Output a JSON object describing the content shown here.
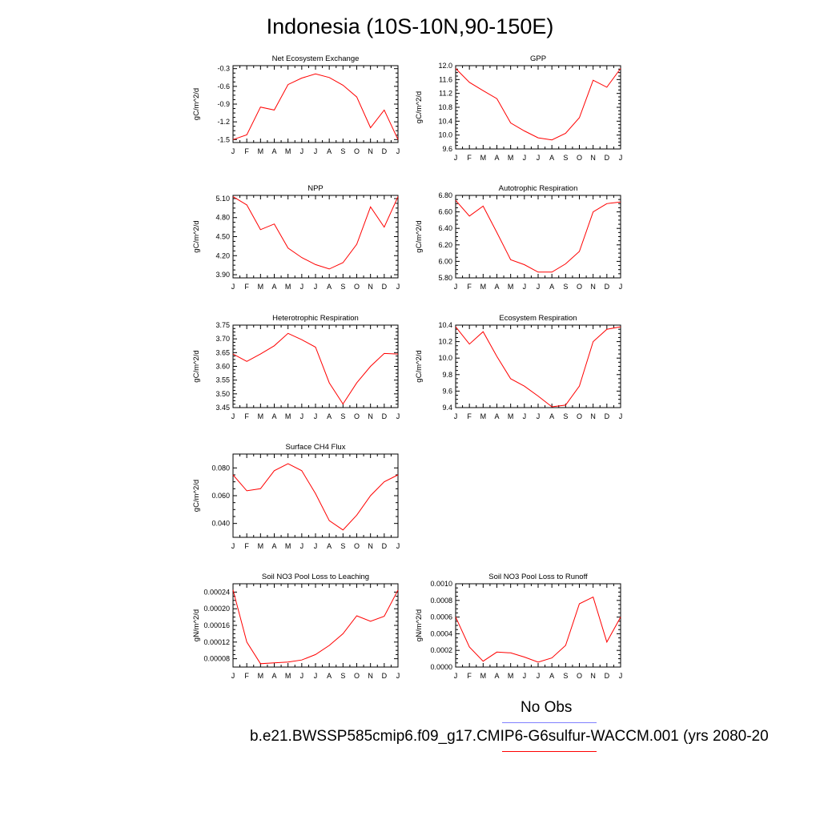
{
  "title": "Indonesia (10S-10N,90-150E)",
  "colors": {
    "model": "#ff0000",
    "obs": "#8080ff",
    "axis": "#000000"
  },
  "legend": {
    "obs_label": "No Obs",
    "model_label": "b.e21.BWSSP585cmip6.f09_g17.CMIP6-G6sulfur-WACCM.001 (yrs 2080-20"
  },
  "chart_data": [
    {
      "type": "line",
      "title": "Net Ecosystem Exchange",
      "ylabel": "gC/m^2/d",
      "x": [
        "J",
        "F",
        "M",
        "A",
        "M",
        "J",
        "J",
        "A",
        "S",
        "O",
        "N",
        "D",
        "J"
      ],
      "ylim": [
        -1.55,
        -0.25
      ],
      "yticks": [
        -1.5,
        -1.2,
        -0.9,
        -0.6,
        -0.3
      ],
      "yticklabels": [
        "-1.5",
        "-1.2",
        "-0.9",
        "-0.6",
        "-0.3"
      ],
      "values": [
        -1.5,
        -1.42,
        -0.95,
        -1.0,
        -0.57,
        -0.46,
        -0.39,
        -0.45,
        -0.58,
        -0.78,
        -1.3,
        -1.0,
        -1.5
      ]
    },
    {
      "type": "line",
      "title": "GPP",
      "ylabel": "gC/m^2/d",
      "x": [
        "J",
        "F",
        "M",
        "A",
        "M",
        "J",
        "J",
        "A",
        "S",
        "O",
        "N",
        "D",
        "J"
      ],
      "ylim": [
        9.6,
        12.0
      ],
      "yticks": [
        9.6,
        10.0,
        10.4,
        10.8,
        11.2,
        11.6,
        12.0
      ],
      "yticklabels": [
        "9.6",
        "10.0",
        "10.4",
        "10.8",
        "11.2",
        "11.6",
        "12.0"
      ],
      "values": [
        11.92,
        11.52,
        11.28,
        11.05,
        10.35,
        10.12,
        9.92,
        9.86,
        10.05,
        10.5,
        11.58,
        11.38,
        11.92
      ]
    },
    {
      "type": "line",
      "title": "NPP",
      "ylabel": "gC/m^2/d",
      "x": [
        "J",
        "F",
        "M",
        "A",
        "M",
        "J",
        "J",
        "A",
        "S",
        "O",
        "N",
        "D",
        "J"
      ],
      "ylim": [
        3.85,
        5.15
      ],
      "yticks": [
        3.9,
        4.2,
        4.5,
        4.8,
        5.1
      ],
      "yticklabels": [
        "3.90",
        "4.20",
        "4.50",
        "4.80",
        "5.10"
      ],
      "values": [
        5.13,
        5.0,
        4.61,
        4.7,
        4.32,
        4.17,
        4.06,
        3.99,
        4.09,
        4.38,
        4.97,
        4.65,
        5.13
      ]
    },
    {
      "type": "line",
      "title": "Autotrophic Respiration",
      "ylabel": "gC/m^2/d",
      "x": [
        "J",
        "F",
        "M",
        "A",
        "M",
        "J",
        "J",
        "A",
        "S",
        "O",
        "N",
        "D",
        "J"
      ],
      "ylim": [
        5.8,
        6.8
      ],
      "yticks": [
        5.8,
        6.0,
        6.2,
        6.4,
        6.6,
        6.8
      ],
      "yticklabels": [
        "5.80",
        "6.00",
        "6.20",
        "6.40",
        "6.60",
        "6.80"
      ],
      "values": [
        6.74,
        6.55,
        6.67,
        6.35,
        6.02,
        5.96,
        5.87,
        5.87,
        5.97,
        6.12,
        6.6,
        6.7,
        6.72
      ]
    },
    {
      "type": "line",
      "title": "Heterotrophic Respiration",
      "ylabel": "gC/m^2/d",
      "x": [
        "J",
        "F",
        "M",
        "A",
        "M",
        "J",
        "J",
        "A",
        "S",
        "O",
        "N",
        "D",
        "J"
      ],
      "ylim": [
        3.45,
        3.75
      ],
      "yticks": [
        3.45,
        3.5,
        3.55,
        3.6,
        3.65,
        3.7,
        3.75
      ],
      "yticklabels": [
        "3.45",
        "3.50",
        "3.55",
        "3.60",
        "3.65",
        "3.70",
        "3.75"
      ],
      "values": [
        3.645,
        3.618,
        3.645,
        3.675,
        3.72,
        3.697,
        3.67,
        3.54,
        3.463,
        3.54,
        3.6,
        3.647,
        3.645
      ]
    },
    {
      "type": "line",
      "title": "Ecosystem Respiration",
      "ylabel": "gC/m^2/d",
      "x": [
        "J",
        "F",
        "M",
        "A",
        "M",
        "J",
        "J",
        "A",
        "S",
        "O",
        "N",
        "D",
        "J"
      ],
      "ylim": [
        9.4,
        10.4
      ],
      "yticks": [
        9.4,
        9.6,
        9.8,
        10.0,
        10.2,
        10.4
      ],
      "yticklabels": [
        "9.4",
        "9.6",
        "9.8",
        "10.0",
        "10.2",
        "10.4"
      ],
      "values": [
        10.38,
        10.17,
        10.32,
        10.02,
        9.75,
        9.66,
        9.54,
        9.41,
        9.43,
        9.66,
        10.2,
        10.35,
        10.38
      ]
    },
    {
      "type": "line",
      "title": "Surface CH4 Flux",
      "ylabel": "gC/m^2/d",
      "x": [
        "J",
        "F",
        "M",
        "A",
        "M",
        "J",
        "J",
        "A",
        "S",
        "O",
        "N",
        "D",
        "J"
      ],
      "ylim": [
        0.03,
        0.09
      ],
      "yticks": [
        0.04,
        0.06,
        0.08
      ],
      "yticklabels": [
        "0.040",
        "0.060",
        "0.080"
      ],
      "values": [
        0.075,
        0.0635,
        0.065,
        0.078,
        0.083,
        0.078,
        0.0615,
        0.042,
        0.0353,
        0.046,
        0.06,
        0.07,
        0.075
      ]
    },
    {
      "type": "line",
      "title": "Soil NO3 Pool Loss to Leaching",
      "ylabel": "gN/m^2/d",
      "x": [
        "J",
        "F",
        "M",
        "A",
        "M",
        "J",
        "J",
        "A",
        "S",
        "O",
        "N",
        "D",
        "J"
      ],
      "ylim": [
        6e-05,
        0.00026
      ],
      "yticks": [
        8e-05,
        0.00012,
        0.00016,
        0.0002,
        0.00024
      ],
      "yticklabels": [
        "0.00008",
        "0.00012",
        "0.00016",
        "0.00020",
        "0.00024"
      ],
      "values": [
        0.000245,
        0.00012,
        6.8e-05,
        7e-05,
        7.2e-05,
        7.7e-05,
        9e-05,
        0.000112,
        0.00014,
        0.000183,
        0.00017,
        0.000182,
        0.000245
      ]
    },
    {
      "type": "line",
      "title": "Soil NO3 Pool Loss to Runoff",
      "ylabel": "gN/m^2/d",
      "x": [
        "J",
        "F",
        "M",
        "A",
        "M",
        "J",
        "J",
        "A",
        "S",
        "O",
        "N",
        "D",
        "J"
      ],
      "ylim": [
        0.0,
        0.001
      ],
      "yticks": [
        0.0,
        0.0002,
        0.0004,
        0.0006,
        0.0008,
        0.001
      ],
      "yticklabels": [
        "0.0000",
        "0.0002",
        "0.0004",
        "0.0006",
        "0.0008",
        "0.0010"
      ],
      "values": [
        0.0006,
        0.00024,
        7e-05,
        0.00018,
        0.00017,
        0.00012,
        6e-05,
        0.00011,
        0.00026,
        0.00076,
        0.00084,
        0.0003,
        0.0006
      ]
    }
  ]
}
